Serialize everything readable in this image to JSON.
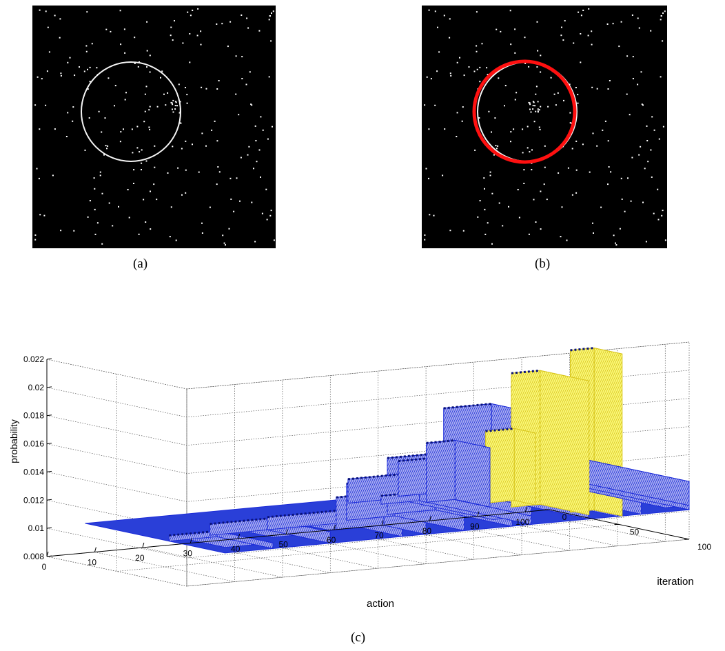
{
  "captions": {
    "a": "(a)",
    "b": "(b)",
    "c": "(c)"
  },
  "colors": {
    "image_background": "#000000",
    "image_points": "#ffffff",
    "true_circle": "#ffffff",
    "detected_circle": "#ff1010",
    "surface_fill": "#a9aef0",
    "surface_mesh": "#1b2bd8",
    "peak_fill": "#fbf87a",
    "peak_mesh": "#d8c51c",
    "marker_dark_red": "#8b1020"
  },
  "panels": [
    {
      "id": "a",
      "content": "noisy-point-image-with-circle",
      "circle_color": "white"
    },
    {
      "id": "b",
      "content": "noisy-point-image-with-detected-circle",
      "circle_color": "red"
    }
  ],
  "chart_data": {
    "type": "surface",
    "xlabel": "action",
    "ylabel": "iteration",
    "zlabel": "probability",
    "xlim": [
      0,
      105
    ],
    "ylim": [
      0,
      100
    ],
    "zlim": [
      0.008,
      0.022
    ],
    "x_ticks": [
      "0",
      "10",
      "20",
      "30",
      "40",
      "50",
      "60",
      "70",
      "80",
      "90",
      "100"
    ],
    "y_ticks": [
      "0",
      "50",
      "100"
    ],
    "z_ticks": [
      "0.008",
      "0.01",
      "0.012",
      "0.014",
      "0.016",
      "0.018",
      "0.02",
      "0.022"
    ],
    "grid": true,
    "baseline_probability": 0.0101,
    "plateaus": [
      {
        "action_range": [
          8,
          18
        ],
        "iteration_range": [
          60,
          100
        ],
        "probability": 0.0105
      },
      {
        "action_range": [
          18,
          30
        ],
        "iteration_range": [
          55,
          100
        ],
        "probability": 0.0109
      },
      {
        "action_range": [
          30,
          45
        ],
        "iteration_range": [
          55,
          100
        ],
        "probability": 0.011
      },
      {
        "action_range": [
          40,
          50
        ],
        "iteration_range": [
          70,
          100
        ],
        "probability": 0.0124
      },
      {
        "action_range": [
          48,
          58
        ],
        "iteration_range": [
          50,
          100
        ],
        "probability": 0.0127
      },
      {
        "action_range": [
          58,
          68
        ],
        "iteration_range": [
          45,
          100
        ],
        "probability": 0.0141
      },
      {
        "action_range": [
          60,
          72
        ],
        "iteration_range": [
          10,
          100
        ],
        "probability": 0.0118
      },
      {
        "action_range": [
          64,
          72
        ],
        "iteration_range": [
          20,
          100
        ],
        "probability": 0.0107
      },
      {
        "action_range": [
          72,
          78
        ],
        "iteration_range": [
          25,
          50
        ],
        "probability": 0.0143
      },
      {
        "action_range": [
          72,
          84
        ],
        "iteration_range": [
          5,
          100
        ],
        "probability": 0.0126
      },
      {
        "action_range": [
          80,
          90
        ],
        "iteration_range": [
          10,
          100
        ],
        "probability": 0.0162
      },
      {
        "action_range": [
          82,
          95
        ],
        "iteration_range": [
          10,
          100
        ],
        "probability": 0.0119
      },
      {
        "action_range": [
          95,
          105
        ],
        "iteration_range": [
          15,
          100
        ],
        "probability": 0.0121
      },
      {
        "action_range": [
          100,
          105
        ],
        "iteration_range": [
          20,
          100
        ],
        "probability": 0.0104
      }
    ],
    "peaks": [
      {
        "action_range": [
          80,
          86
        ],
        "iteration_range": [
          40,
          55
        ],
        "probability": 0.0152
      },
      {
        "action_range": [
          81,
          87
        ],
        "iteration_range": [
          55,
          90
        ],
        "probability": 0.0196
      },
      {
        "action_range": [
          86,
          91
        ],
        "iteration_range": [
          80,
          100
        ],
        "probability": 0.0216
      }
    ]
  }
}
